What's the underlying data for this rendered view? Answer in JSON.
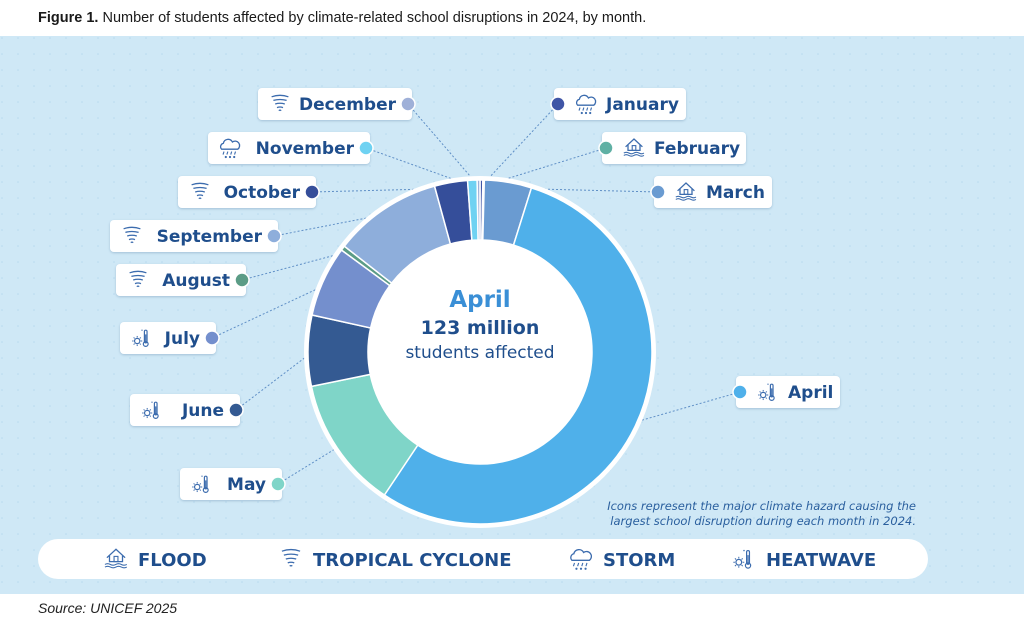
{
  "figure": {
    "label": "Figure 1.",
    "title": "Number of students affected by climate-related school disruptions in 2024, by month."
  },
  "center": {
    "month": "April",
    "value": "123 million",
    "caption": "students affected"
  },
  "note": [
    "Icons represent the major climate hazard causing the",
    "largest school disruption during each month in 2024."
  ],
  "legend": [
    {
      "label": "FLOOD",
      "icon": "flood-icon"
    },
    {
      "label": "TROPICAL CYCLONE",
      "icon": "cyclone-icon"
    },
    {
      "label": "STORM",
      "icon": "storm-icon"
    },
    {
      "label": "HEATWAVE",
      "icon": "heatwave-icon"
    }
  ],
  "source": "Source: UNICEF 2025",
  "colors": {
    "panel": "#cfe8f6",
    "text": "#1f4e8c"
  },
  "chart_data": {
    "type": "pie",
    "donut": true,
    "title": "Number of students affected by climate-related school disruptions in 2024, by month.",
    "unit": "million students",
    "categories": [
      "January",
      "February",
      "March",
      "April",
      "May",
      "June",
      "July",
      "August",
      "September",
      "October",
      "November",
      "December"
    ],
    "values": [
      0.6,
      0.3,
      10,
      123,
      28,
      15,
      15,
      1,
      23,
      7,
      2,
      0.6
    ],
    "labels": [
      "January",
      "February",
      "March",
      "April",
      "May",
      "June",
      "July",
      "August",
      "September",
      "October",
      "November",
      "December"
    ],
    "hazards": [
      "storm",
      "flood",
      "flood",
      "heatwave",
      "heatwave",
      "heatwave",
      "heatwave",
      "tropical cyclone",
      "tropical cyclone",
      "tropical cyclone",
      "storm",
      "tropical cyclone"
    ],
    "colors": [
      "#3f55a6",
      "#5fb0a4",
      "#6a9bd1",
      "#4fb0ea",
      "#7fd5c8",
      "#345a92",
      "#748fcd",
      "#5b9c86",
      "#8eaedb",
      "#354e9a",
      "#6fd2f2",
      "#9fb0d8"
    ]
  }
}
